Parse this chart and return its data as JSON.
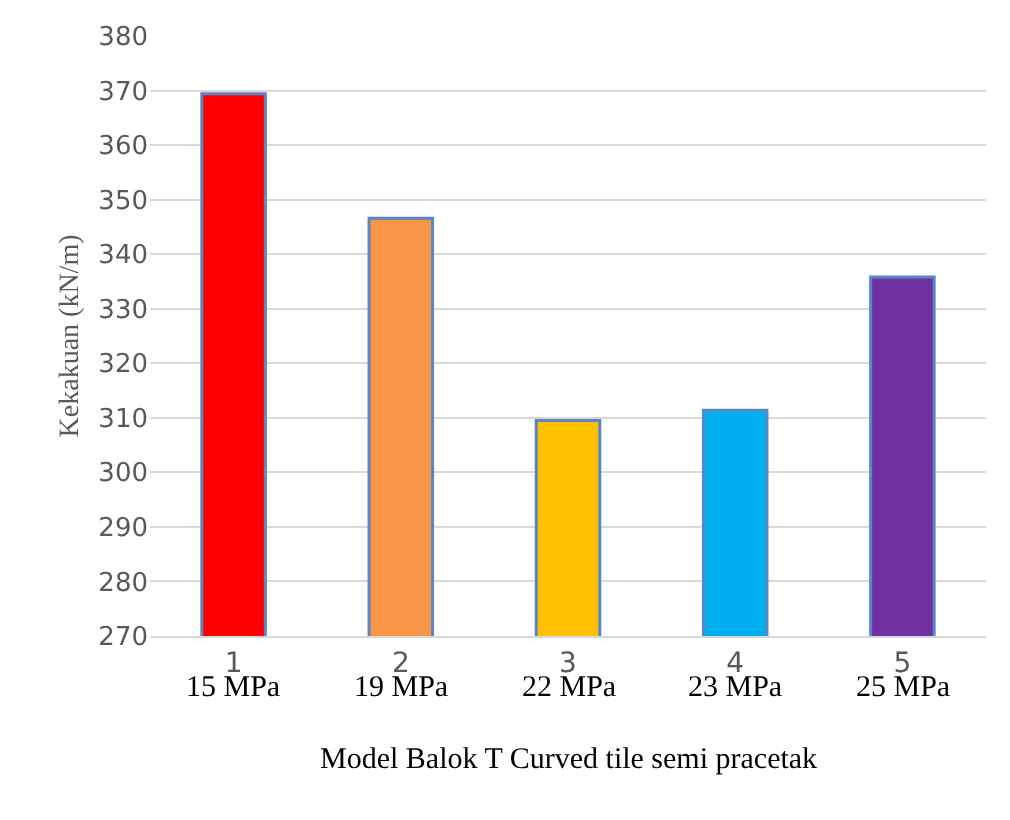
{
  "chart_data": {
    "type": "bar",
    "xlabel": "Model Balok T Curved tile semi pracetak",
    "ylabel": "Kekakuan (kN/m)",
    "categories": [
      "1",
      "2",
      "3",
      "4",
      "5"
    ],
    "values": [
      369.4,
      346.6,
      309.5,
      311.4,
      335.8
    ],
    "colors": [
      "#ff0000",
      "#f79646",
      "#ffc000",
      "#00b0f0",
      "#7030a0"
    ],
    "ylim": [
      270,
      380
    ],
    "yticks": [
      270,
      280,
      290,
      300,
      310,
      320,
      330,
      340,
      350,
      360,
      370,
      380
    ],
    "grid": "y",
    "legend": false,
    "annotations": [
      "15 MPa",
      "19 MPa",
      "22 MPa",
      "23 MPa",
      "25 MPa"
    ]
  }
}
